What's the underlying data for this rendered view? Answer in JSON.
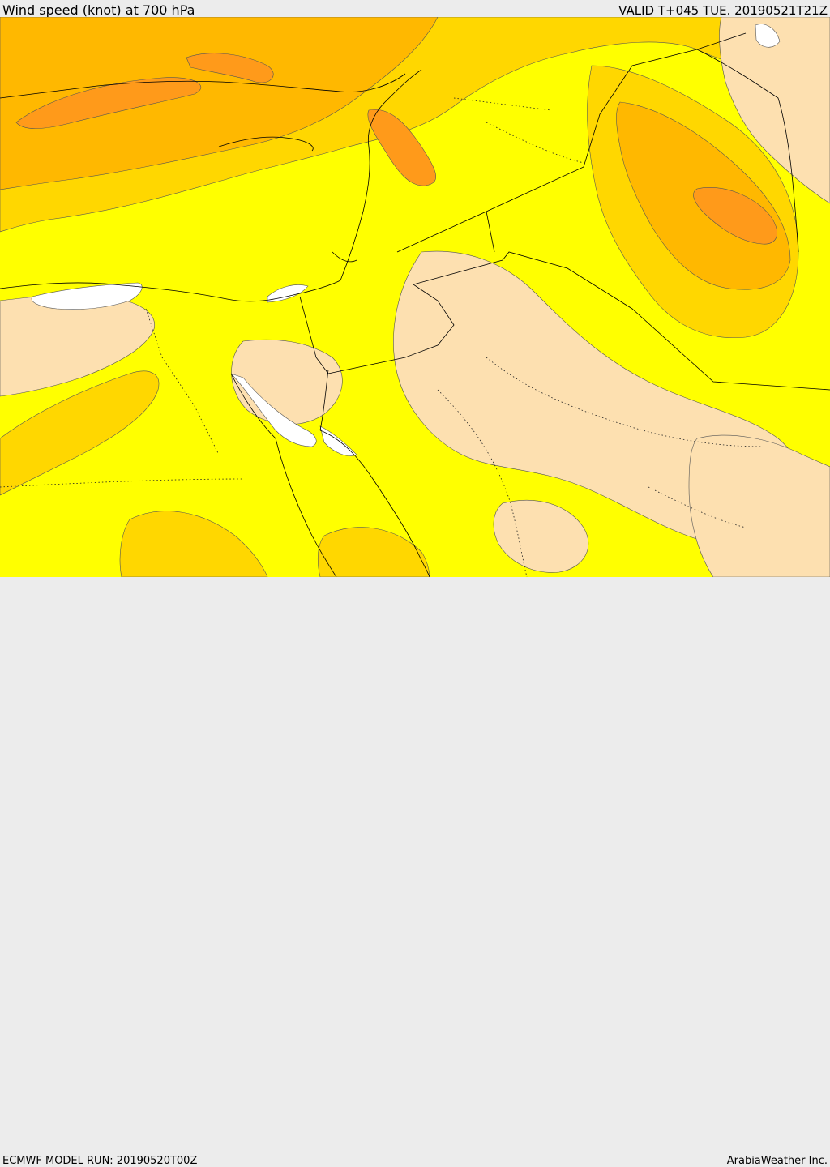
{
  "header": {
    "title": "Wind speed (knot) at 700 hPa",
    "valid": "VALID T+045 TUE. 20190521T21Z"
  },
  "footer": {
    "model_run": "ECMWF MODEL RUN: 20190520T00Z",
    "brand": "ArabiaWeather Inc."
  },
  "colors": {
    "background": "#ececec",
    "speed_band_1": "#ffffff",
    "speed_band_2": "#fde0b0",
    "speed_band_3": "#ffff00",
    "speed_band_4": "#ffd700",
    "speed_band_5": "#ffb800",
    "speed_band_6": "#ff9a1a",
    "speed_band_7": "#ff7f20",
    "boundary_line": "#000000"
  }
}
